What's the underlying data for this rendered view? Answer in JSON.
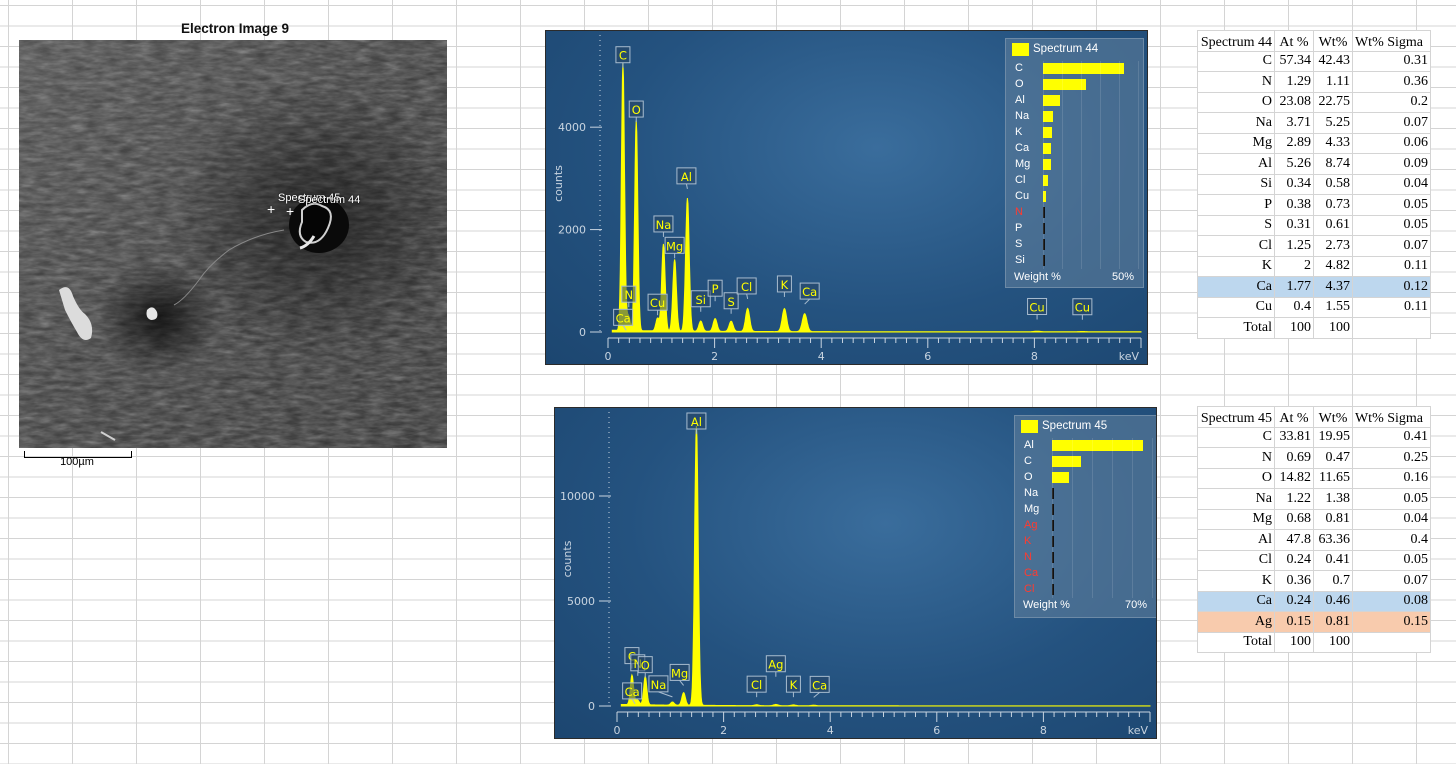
{
  "electron_image": {
    "title": "Electron Image 9",
    "scale_label": "100µm",
    "markers": [
      {
        "label": "Spectrum 45"
      },
      {
        "label": "Spectrum 44"
      }
    ]
  },
  "spectrum44": {
    "legend_title": "Spectrum 44",
    "legend_items": [
      {
        "el": "C",
        "value": 42.43,
        "red": false
      },
      {
        "el": "O",
        "value": 22.75,
        "red": false
      },
      {
        "el": "Al",
        "value": 8.74,
        "red": false
      },
      {
        "el": "Na",
        "value": 5.25,
        "red": false
      },
      {
        "el": "K",
        "value": 4.82,
        "red": false
      },
      {
        "el": "Ca",
        "value": 4.37,
        "red": false
      },
      {
        "el": "Mg",
        "value": 4.33,
        "red": false
      },
      {
        "el": "Cl",
        "value": 2.73,
        "red": false
      },
      {
        "el": "Cu",
        "value": 1.55,
        "red": false
      },
      {
        "el": "N",
        "value": 1.11,
        "red": true
      },
      {
        "el": "P",
        "value": 0.73,
        "red": false
      },
      {
        "el": "S",
        "value": 0.61,
        "red": false
      },
      {
        "el": "Si",
        "value": 0.58,
        "red": false
      }
    ],
    "legend_footer_left": "Weight %",
    "legend_footer_right": "50%",
    "legend_max": 50,
    "ylabel": "counts",
    "xunit": "keV"
  },
  "spectrum45": {
    "legend_title": "Spectrum 45",
    "legend_items": [
      {
        "el": "Al",
        "value": 63.36,
        "red": false
      },
      {
        "el": "C",
        "value": 19.95,
        "red": false
      },
      {
        "el": "O",
        "value": 11.65,
        "red": false
      },
      {
        "el": "Na",
        "value": 1.38,
        "red": false
      },
      {
        "el": "Mg",
        "value": 0.81,
        "red": false
      },
      {
        "el": "Ag",
        "value": 0.81,
        "red": true
      },
      {
        "el": "K",
        "value": 0.7,
        "red": true
      },
      {
        "el": "N",
        "value": 0.47,
        "red": true
      },
      {
        "el": "Ca",
        "value": 0.46,
        "red": true
      },
      {
        "el": "Cl",
        "value": 0.41,
        "red": true
      }
    ],
    "legend_footer_left": "Weight %",
    "legend_footer_right": "70%",
    "legend_max": 70,
    "ylabel": "counts",
    "xunit": "keV"
  },
  "chart_data": [
    {
      "type": "line",
      "title": "",
      "series": [
        {
          "name": "Spectrum 44"
        }
      ],
      "ylabel": "counts",
      "xlabel": "keV",
      "xlim": [
        0,
        10
      ],
      "ylim": [
        0,
        5800
      ],
      "x_ticks": [
        0,
        2,
        4,
        6,
        8
      ],
      "y_ticks": [
        0,
        2000,
        4000
      ],
      "peaks": [
        {
          "label": "C",
          "kev": 0.28,
          "counts": 5200
        },
        {
          "label": "N",
          "kev": 0.39,
          "counts": 250
        },
        {
          "label": "Ca",
          "kev": 0.34,
          "counts": 150
        },
        {
          "label": "O",
          "kev": 0.53,
          "counts": 4100
        },
        {
          "label": "Cu",
          "kev": 0.93,
          "counts": 250
        },
        {
          "label": "Na",
          "kev": 1.04,
          "counts": 1700
        },
        {
          "label": "Mg",
          "kev": 1.25,
          "counts": 1400
        },
        {
          "label": "Al",
          "kev": 1.49,
          "counts": 2600
        },
        {
          "label": "Si",
          "kev": 1.74,
          "counts": 200
        },
        {
          "label": "P",
          "kev": 2.01,
          "counts": 250
        },
        {
          "label": "S",
          "kev": 2.31,
          "counts": 200
        },
        {
          "label": "Cl",
          "kev": 2.62,
          "counts": 450
        },
        {
          "label": "K",
          "kev": 3.31,
          "counts": 450
        },
        {
          "label": "Ca",
          "kev": 3.69,
          "counts": 350
        },
        {
          "label": "Cu",
          "kev": 8.05,
          "counts": 10
        },
        {
          "label": "Cu",
          "kev": 8.9,
          "counts": 5
        }
      ]
    },
    {
      "type": "line",
      "title": "",
      "series": [
        {
          "name": "Spectrum 45"
        }
      ],
      "ylabel": "counts",
      "xlabel": "keV",
      "xlim": [
        0,
        10
      ],
      "ylim": [
        0,
        14000
      ],
      "x_ticks": [
        0,
        2,
        4,
        6,
        8
      ],
      "y_ticks": [
        0,
        5000,
        10000
      ],
      "peaks": [
        {
          "label": "C",
          "kev": 0.28,
          "counts": 1400
        },
        {
          "label": "N",
          "kev": 0.39,
          "counts": 200
        },
        {
          "label": "Ca",
          "kev": 0.34,
          "counts": 100
        },
        {
          "label": "O",
          "kev": 0.53,
          "counts": 1350
        },
        {
          "label": "Na",
          "kev": 1.04,
          "counts": 150
        },
        {
          "label": "Mg",
          "kev": 1.25,
          "counts": 600
        },
        {
          "label": "Al",
          "kev": 1.49,
          "counts": 13300
        },
        {
          "label": "Cl",
          "kev": 2.62,
          "counts": 40
        },
        {
          "label": "Ag",
          "kev": 2.98,
          "counts": 60
        },
        {
          "label": "K",
          "kev": 3.31,
          "counts": 40
        },
        {
          "label": "Ca",
          "kev": 3.69,
          "counts": 30
        }
      ]
    }
  ],
  "table44": {
    "headers": [
      "Spectrum 44",
      "At %",
      "Wt%",
      "Wt% Sigma"
    ],
    "rows": [
      {
        "el": "C",
        "at": "57.34",
        "wt": "42.43",
        "sigma": "0.31",
        "hl": ""
      },
      {
        "el": "N",
        "at": "1.29",
        "wt": "1.11",
        "sigma": "0.36",
        "hl": ""
      },
      {
        "el": "O",
        "at": "23.08",
        "wt": "22.75",
        "sigma": "0.2",
        "hl": ""
      },
      {
        "el": "Na",
        "at": "3.71",
        "wt": "5.25",
        "sigma": "0.07",
        "hl": ""
      },
      {
        "el": "Mg",
        "at": "2.89",
        "wt": "4.33",
        "sigma": "0.06",
        "hl": ""
      },
      {
        "el": "Al",
        "at": "5.26",
        "wt": "8.74",
        "sigma": "0.09",
        "hl": ""
      },
      {
        "el": "Si",
        "at": "0.34",
        "wt": "0.58",
        "sigma": "0.04",
        "hl": ""
      },
      {
        "el": "P",
        "at": "0.38",
        "wt": "0.73",
        "sigma": "0.05",
        "hl": ""
      },
      {
        "el": "S",
        "at": "0.31",
        "wt": "0.61",
        "sigma": "0.05",
        "hl": ""
      },
      {
        "el": "Cl",
        "at": "1.25",
        "wt": "2.73",
        "sigma": "0.07",
        "hl": ""
      },
      {
        "el": "K",
        "at": "2",
        "wt": "4.82",
        "sigma": "0.11",
        "hl": ""
      },
      {
        "el": "Ca",
        "at": "1.77",
        "wt": "4.37",
        "sigma": "0.12",
        "hl": "blue"
      },
      {
        "el": "Cu",
        "at": "0.4",
        "wt": "1.55",
        "sigma": "0.11",
        "hl": ""
      },
      {
        "el": "Total",
        "at": "100",
        "wt": "100",
        "sigma": "",
        "hl": ""
      }
    ]
  },
  "table45": {
    "headers": [
      "Spectrum 45",
      "At %",
      "Wt%",
      "Wt% Sigma"
    ],
    "rows": [
      {
        "el": "C",
        "at": "33.81",
        "wt": "19.95",
        "sigma": "0.41",
        "hl": ""
      },
      {
        "el": "N",
        "at": "0.69",
        "wt": "0.47",
        "sigma": "0.25",
        "hl": ""
      },
      {
        "el": "O",
        "at": "14.82",
        "wt": "11.65",
        "sigma": "0.16",
        "hl": ""
      },
      {
        "el": "Na",
        "at": "1.22",
        "wt": "1.38",
        "sigma": "0.05",
        "hl": ""
      },
      {
        "el": "Mg",
        "at": "0.68",
        "wt": "0.81",
        "sigma": "0.04",
        "hl": ""
      },
      {
        "el": "Al",
        "at": "47.8",
        "wt": "63.36",
        "sigma": "0.4",
        "hl": ""
      },
      {
        "el": "Cl",
        "at": "0.24",
        "wt": "0.41",
        "sigma": "0.05",
        "hl": ""
      },
      {
        "el": "K",
        "at": "0.36",
        "wt": "0.7",
        "sigma": "0.07",
        "hl": ""
      },
      {
        "el": "Ca",
        "at": "0.24",
        "wt": "0.46",
        "sigma": "0.08",
        "hl": "blue"
      },
      {
        "el": "Ag",
        "at": "0.15",
        "wt": "0.81",
        "sigma": "0.15",
        "hl": "orange"
      },
      {
        "el": "Total",
        "at": "100",
        "wt": "100",
        "sigma": "",
        "hl": ""
      }
    ]
  },
  "colors": {
    "peak": "#ffff00",
    "panel": "#24527f",
    "highlight_blue": "#bdd7ee",
    "highlight_orange": "#f8cbad"
  }
}
